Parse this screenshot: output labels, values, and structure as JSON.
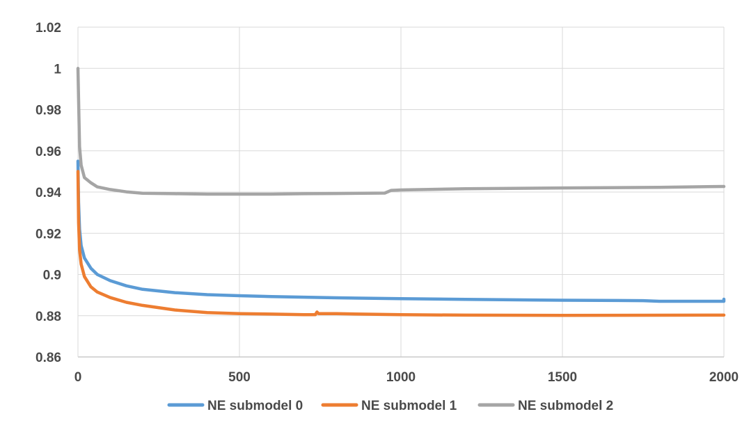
{
  "chart_data": {
    "type": "line",
    "title": "",
    "xlabel": "",
    "ylabel": "",
    "xlim": [
      0,
      2000
    ],
    "ylim": [
      0.86,
      1.02
    ],
    "x_ticks": [
      0,
      500,
      1000,
      1500,
      2000
    ],
    "y_ticks": [
      0.86,
      0.88,
      0.9,
      0.92,
      0.94,
      0.96,
      0.98,
      1,
      1.02
    ],
    "x_tick_labels": [
      "0",
      "500",
      "1000",
      "1500",
      "2000"
    ],
    "y_tick_labels": [
      "0.86",
      "0.88",
      "0.9",
      "0.92",
      "0.94",
      "0.96",
      "0.98",
      "1",
      "1.02"
    ],
    "grid": true,
    "legend_position": "bottom",
    "series": [
      {
        "name": "NE submodel 0",
        "color": "#5b9bd5",
        "points": [
          [
            0,
            0.955
          ],
          [
            2,
            0.935
          ],
          [
            5,
            0.922
          ],
          [
            10,
            0.914
          ],
          [
            20,
            0.908
          ],
          [
            40,
            0.903
          ],
          [
            60,
            0.9
          ],
          [
            100,
            0.897
          ],
          [
            150,
            0.8945
          ],
          [
            200,
            0.8928
          ],
          [
            300,
            0.8912
          ],
          [
            400,
            0.8902
          ],
          [
            500,
            0.8897
          ],
          [
            600,
            0.8893
          ],
          [
            700,
            0.889
          ],
          [
            800,
            0.8887
          ],
          [
            1000,
            0.8883
          ],
          [
            1200,
            0.8879
          ],
          [
            1500,
            0.8875
          ],
          [
            1750,
            0.8873
          ],
          [
            1800,
            0.887
          ],
          [
            2000,
            0.887
          ],
          [
            2000,
            0.888
          ]
        ]
      },
      {
        "name": "NE submodel 1",
        "color": "#ed7d31",
        "points": [
          [
            0,
            0.95
          ],
          [
            2,
            0.925
          ],
          [
            5,
            0.912
          ],
          [
            10,
            0.905
          ],
          [
            20,
            0.899
          ],
          [
            40,
            0.894
          ],
          [
            60,
            0.8915
          ],
          [
            100,
            0.8888
          ],
          [
            150,
            0.8865
          ],
          [
            200,
            0.885
          ],
          [
            300,
            0.8828
          ],
          [
            400,
            0.8815
          ],
          [
            500,
            0.881
          ],
          [
            600,
            0.8808
          ],
          [
            700,
            0.8805
          ],
          [
            735,
            0.8805
          ],
          [
            740,
            0.8818
          ],
          [
            745,
            0.881
          ],
          [
            800,
            0.881
          ],
          [
            1000,
            0.8805
          ],
          [
            1200,
            0.8803
          ],
          [
            1500,
            0.8802
          ],
          [
            2000,
            0.8803
          ]
        ]
      },
      {
        "name": "NE submodel 2",
        "color": "#a5a5a5",
        "points": [
          [
            0,
            1.0
          ],
          [
            2,
            0.985
          ],
          [
            5,
            0.962
          ],
          [
            10,
            0.953
          ],
          [
            20,
            0.947
          ],
          [
            40,
            0.9445
          ],
          [
            60,
            0.9425
          ],
          [
            100,
            0.9412
          ],
          [
            150,
            0.9401
          ],
          [
            200,
            0.9394
          ],
          [
            300,
            0.9392
          ],
          [
            400,
            0.939
          ],
          [
            500,
            0.939
          ],
          [
            600,
            0.939
          ],
          [
            700,
            0.9392
          ],
          [
            800,
            0.9393
          ],
          [
            950,
            0.9395
          ],
          [
            970,
            0.9408
          ],
          [
            1000,
            0.941
          ],
          [
            1200,
            0.9416
          ],
          [
            1500,
            0.942
          ],
          [
            1800,
            0.9423
          ],
          [
            2000,
            0.9427
          ]
        ]
      }
    ]
  }
}
